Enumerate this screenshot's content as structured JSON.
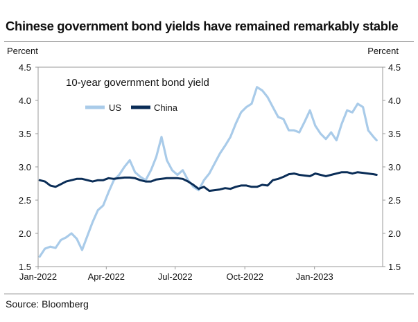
{
  "title": "Chinese government bond yields have remained remarkably stable",
  "source": "Source: Bloomberg",
  "chart_data": {
    "type": "line",
    "annotation": "10-year government bond yield",
    "ylabel_left": "Percent",
    "ylabel_right": "Percent",
    "ylim": [
      1.5,
      4.5
    ],
    "yticks": [
      "1.5",
      "2.0",
      "2.5",
      "3.0",
      "3.5",
      "4.0",
      "4.5"
    ],
    "xticks": [
      "Jan-2022",
      "Apr-2022",
      "Jul-2022",
      "Oct-2022",
      "Jan-2023"
    ],
    "xlim": [
      "2022-01-01",
      "2023-04-01"
    ],
    "legend_position": "top-left",
    "grid": false,
    "series": [
      {
        "name": "US",
        "color": "#a9cbe9",
        "x": [
          "2022-01-03",
          "2022-01-10",
          "2022-01-17",
          "2022-01-24",
          "2022-01-31",
          "2022-02-07",
          "2022-02-14",
          "2022-02-21",
          "2022-02-28",
          "2022-03-07",
          "2022-03-14",
          "2022-03-21",
          "2022-03-28",
          "2022-04-04",
          "2022-04-11",
          "2022-04-18",
          "2022-04-25",
          "2022-05-02",
          "2022-05-09",
          "2022-05-16",
          "2022-05-23",
          "2022-05-30",
          "2022-06-06",
          "2022-06-13",
          "2022-06-20",
          "2022-06-27",
          "2022-07-04",
          "2022-07-11",
          "2022-07-18",
          "2022-07-25",
          "2022-08-01",
          "2022-08-08",
          "2022-08-15",
          "2022-08-22",
          "2022-08-29",
          "2022-09-05",
          "2022-09-12",
          "2022-09-19",
          "2022-09-26",
          "2022-10-03",
          "2022-10-10",
          "2022-10-17",
          "2022-10-24",
          "2022-10-31",
          "2022-11-07",
          "2022-11-14",
          "2022-11-21",
          "2022-11-28",
          "2022-12-05",
          "2022-12-12",
          "2022-12-19",
          "2022-12-26",
          "2023-01-02",
          "2023-01-09",
          "2023-01-16",
          "2023-01-23",
          "2023-01-30",
          "2023-02-06",
          "2023-02-13",
          "2023-02-20",
          "2023-02-27",
          "2023-03-06",
          "2023-03-13",
          "2023-03-20",
          "2023-03-24"
        ],
        "values": [
          1.65,
          1.77,
          1.8,
          1.78,
          1.9,
          1.94,
          2.0,
          1.92,
          1.75,
          1.96,
          2.17,
          2.35,
          2.42,
          2.62,
          2.8,
          2.88,
          3.0,
          3.1,
          2.92,
          2.85,
          2.8,
          2.95,
          3.15,
          3.45,
          3.1,
          2.95,
          2.88,
          2.95,
          2.8,
          2.7,
          2.65,
          2.8,
          2.9,
          3.05,
          3.2,
          3.32,
          3.45,
          3.65,
          3.82,
          3.9,
          3.95,
          4.2,
          4.15,
          4.05,
          3.9,
          3.75,
          3.72,
          3.55,
          3.55,
          3.52,
          3.68,
          3.85,
          3.62,
          3.5,
          3.42,
          3.52,
          3.4,
          3.65,
          3.85,
          3.82,
          3.95,
          3.9,
          3.55,
          3.45,
          3.4
        ]
      },
      {
        "name": "China",
        "color": "#0a2d57",
        "x": [
          "2022-01-03",
          "2022-01-10",
          "2022-01-17",
          "2022-01-24",
          "2022-01-31",
          "2022-02-07",
          "2022-02-14",
          "2022-02-21",
          "2022-02-28",
          "2022-03-07",
          "2022-03-14",
          "2022-03-21",
          "2022-03-28",
          "2022-04-04",
          "2022-04-11",
          "2022-04-18",
          "2022-04-25",
          "2022-05-02",
          "2022-05-09",
          "2022-05-16",
          "2022-05-23",
          "2022-05-30",
          "2022-06-06",
          "2022-06-13",
          "2022-06-20",
          "2022-06-27",
          "2022-07-04",
          "2022-07-11",
          "2022-07-18",
          "2022-07-25",
          "2022-08-01",
          "2022-08-08",
          "2022-08-15",
          "2022-08-22",
          "2022-08-29",
          "2022-09-05",
          "2022-09-12",
          "2022-09-19",
          "2022-09-26",
          "2022-10-03",
          "2022-10-10",
          "2022-10-17",
          "2022-10-24",
          "2022-10-31",
          "2022-11-07",
          "2022-11-14",
          "2022-11-21",
          "2022-11-28",
          "2022-12-05",
          "2022-12-12",
          "2022-12-19",
          "2022-12-26",
          "2023-01-02",
          "2023-01-09",
          "2023-01-16",
          "2023-01-23",
          "2023-01-30",
          "2023-02-06",
          "2023-02-13",
          "2023-02-20",
          "2023-02-27",
          "2023-03-06",
          "2023-03-13",
          "2023-03-20",
          "2023-03-24"
        ],
        "values": [
          2.8,
          2.78,
          2.72,
          2.7,
          2.74,
          2.78,
          2.8,
          2.82,
          2.82,
          2.8,
          2.78,
          2.8,
          2.8,
          2.83,
          2.82,
          2.83,
          2.84,
          2.84,
          2.83,
          2.8,
          2.78,
          2.78,
          2.81,
          2.82,
          2.83,
          2.83,
          2.83,
          2.82,
          2.78,
          2.73,
          2.67,
          2.7,
          2.64,
          2.65,
          2.66,
          2.68,
          2.67,
          2.7,
          2.72,
          2.72,
          2.7,
          2.7,
          2.73,
          2.72,
          2.8,
          2.82,
          2.85,
          2.89,
          2.9,
          2.88,
          2.87,
          2.86,
          2.9,
          2.88,
          2.86,
          2.88,
          2.9,
          2.92,
          2.92,
          2.9,
          2.92,
          2.91,
          2.9,
          2.89,
          2.88
        ]
      }
    ]
  }
}
